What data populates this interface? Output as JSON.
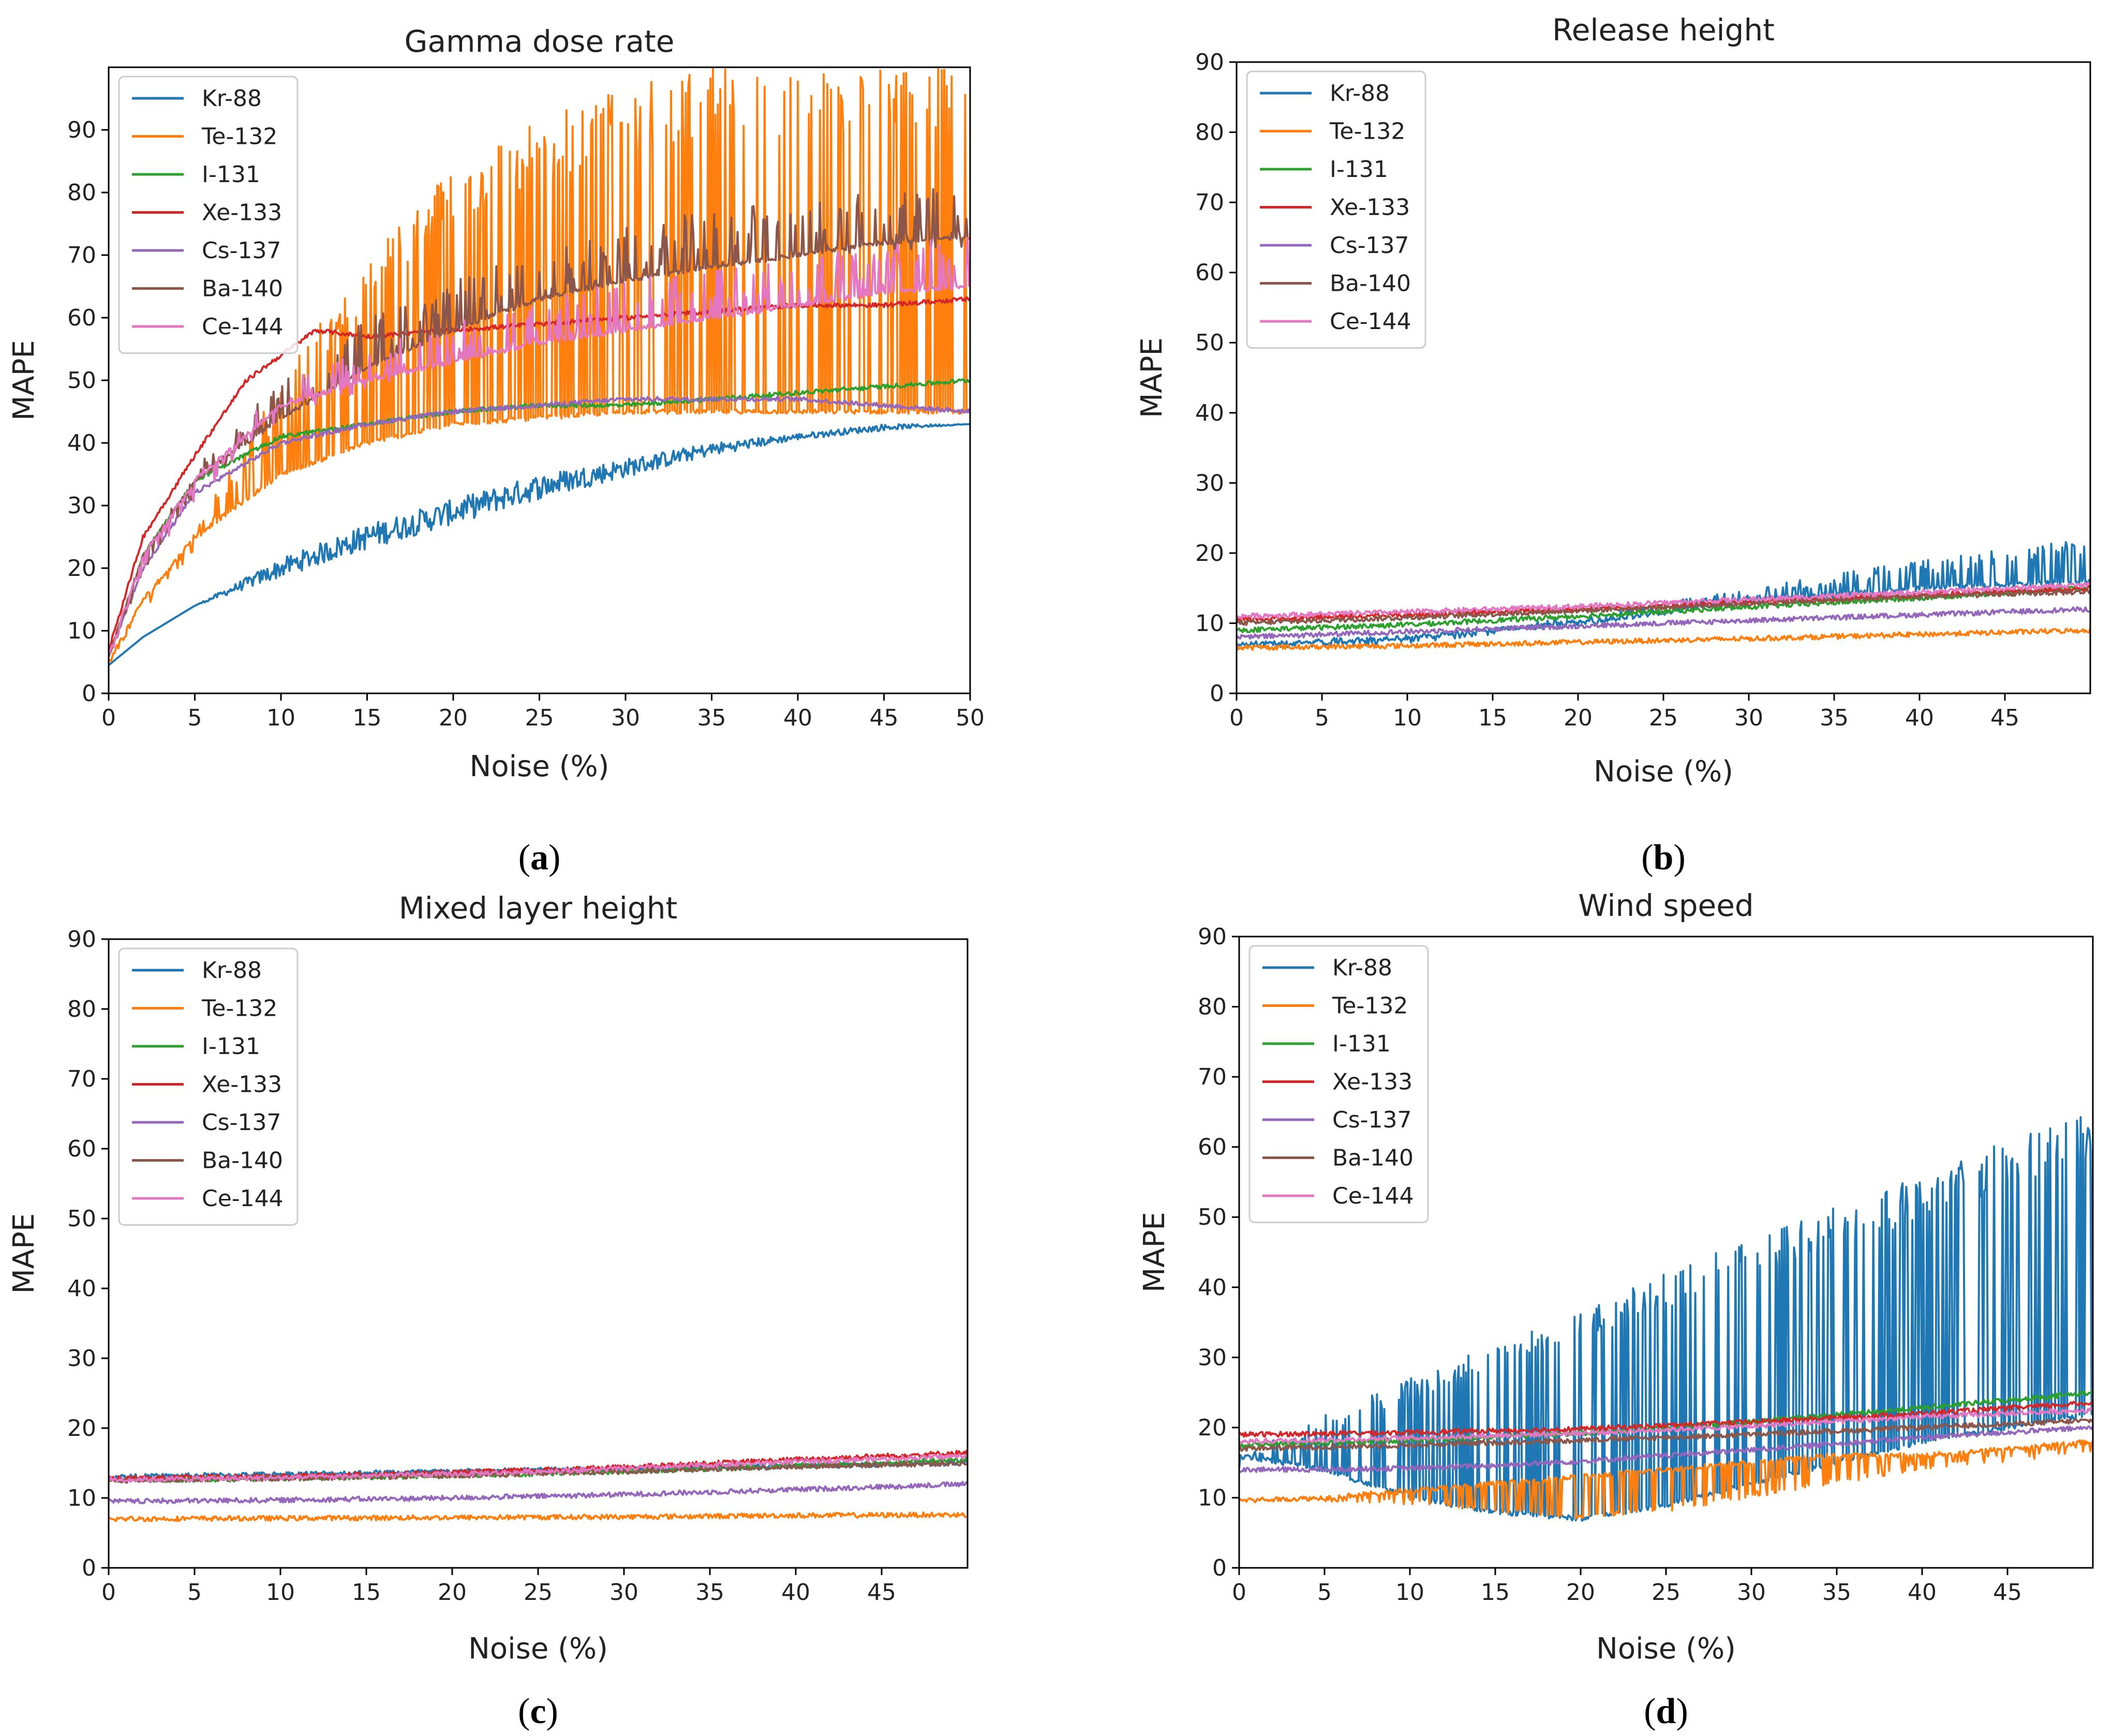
{
  "chart_data": [
    {
      "id": "a",
      "type": "line",
      "title": "Gamma dose rate",
      "caption_letter": "a",
      "xlabel": "Noise (%)",
      "ylabel": "MAPE",
      "xlim": [
        0,
        50
      ],
      "ylim": [
        0,
        100
      ],
      "xticks": [
        "0",
        "5",
        "10",
        "15",
        "20",
        "25",
        "30",
        "35",
        "40",
        "45",
        "50"
      ],
      "yticks": [
        "0",
        "10",
        "20",
        "30",
        "40",
        "50",
        "60",
        "70",
        "80",
        "90"
      ],
      "legend_position": "top-left",
      "series": [
        {
          "name": "Kr-88",
          "color": "#1f77b4",
          "x": [
            0,
            2,
            5,
            10,
            15,
            20,
            25,
            30,
            35,
            40,
            45,
            50
          ],
          "y": [
            4.5,
            9,
            14,
            20,
            25,
            29,
            33,
            36,
            39,
            41,
            42.5,
            43
          ],
          "noise_band": [
            0,
            0,
            0,
            1.5,
            2,
            2,
            2,
            1.5,
            1,
            0.5,
            0.5,
            0
          ]
        },
        {
          "name": "Te-132",
          "color": "#ff7f0e",
          "x": [
            0,
            2,
            5,
            10,
            15,
            20,
            25,
            30,
            35,
            40,
            45,
            50
          ],
          "y": [
            5,
            15,
            25,
            35,
            40,
            43,
            44,
            45,
            45,
            45,
            45,
            45
          ],
          "y_upper": [
            5,
            15,
            26,
            50,
            70,
            85,
            92,
            97,
            100,
            100,
            100,
            100
          ]
        },
        {
          "name": "I-131",
          "color": "#2ca02c",
          "x": [
            0,
            2,
            5,
            10,
            15,
            20,
            25,
            30,
            35,
            40,
            45,
            50
          ],
          "y": [
            6,
            22,
            34,
            41,
            43,
            45,
            46,
            46,
            47,
            48,
            49,
            50
          ]
        },
        {
          "name": "Xe-133",
          "color": "#d62728",
          "x": [
            0,
            2,
            5,
            8,
            12,
            15,
            20,
            25,
            30,
            35,
            40,
            45,
            50
          ],
          "y": [
            7,
            25,
            38,
            50,
            58,
            57,
            58,
            59,
            60,
            61,
            62,
            62,
            63
          ]
        },
        {
          "name": "Cs-137",
          "color": "#9467bd",
          "x": [
            0,
            2,
            5,
            10,
            15,
            20,
            25,
            30,
            35,
            40,
            45,
            50
          ],
          "y": [
            6,
            20,
            32,
            40,
            43,
            45,
            46,
            47,
            47,
            47,
            46,
            45
          ]
        },
        {
          "name": "Ba-140",
          "color": "#8c564b",
          "x": [
            0,
            2,
            5,
            10,
            15,
            20,
            25,
            30,
            35,
            40,
            45,
            50
          ],
          "y": [
            6,
            22,
            34,
            44,
            52,
            58,
            63,
            66,
            68,
            70,
            72,
            73
          ],
          "y_upper": [
            6,
            22,
            36,
            50,
            60,
            66,
            71,
            75,
            77,
            79,
            80,
            81
          ]
        },
        {
          "name": "Ce-144",
          "color": "#e377c2",
          "x": [
            0,
            2,
            5,
            10,
            15,
            20,
            25,
            30,
            35,
            40,
            45,
            50
          ],
          "y": [
            6,
            22,
            34,
            46,
            50,
            53,
            56,
            58,
            60,
            62,
            64,
            65
          ],
          "y_upper": [
            6,
            22,
            35,
            50,
            55,
            60,
            63,
            66,
            68,
            70,
            72,
            73
          ]
        }
      ]
    },
    {
      "id": "b",
      "type": "line",
      "title": "Release height",
      "caption_letter": "b",
      "xlabel": "Noise (%)",
      "ylabel": "MAPE",
      "xlim": [
        0,
        50
      ],
      "ylim": [
        0,
        90
      ],
      "xticks": [
        "0",
        "5",
        "10",
        "15",
        "20",
        "25",
        "30",
        "35",
        "40",
        "45"
      ],
      "yticks": [
        "0",
        "10",
        "20",
        "30",
        "40",
        "50",
        "60",
        "70",
        "80",
        "90"
      ],
      "legend_position": "top-left",
      "series": [
        {
          "name": "Kr-88",
          "color": "#1f77b4",
          "x": [
            0,
            10,
            20,
            30,
            40,
            50
          ],
          "y": [
            7,
            8,
            10,
            13,
            15,
            16
          ],
          "y_upper": [
            7,
            8,
            11,
            15,
            19,
            22.5
          ]
        },
        {
          "name": "Te-132",
          "color": "#ff7f0e",
          "x": [
            0,
            10,
            20,
            30,
            40,
            50
          ],
          "y": [
            6.5,
            6.8,
            7.3,
            7.8,
            8.4,
            9
          ]
        },
        {
          "name": "I-131",
          "color": "#2ca02c",
          "x": [
            0,
            10,
            20,
            30,
            40,
            50
          ],
          "y": [
            9,
            9.8,
            11,
            12.3,
            13.6,
            15
          ]
        },
        {
          "name": "Xe-133",
          "color": "#d62728",
          "x": [
            0,
            10,
            20,
            30,
            40,
            50
          ],
          "y": [
            10.5,
            11.2,
            12,
            13,
            14,
            15
          ]
        },
        {
          "name": "Cs-137",
          "color": "#9467bd",
          "x": [
            0,
            10,
            20,
            30,
            40,
            50
          ],
          "y": [
            8,
            8.8,
            9.6,
            10.4,
            11.2,
            12
          ]
        },
        {
          "name": "Ba-140",
          "color": "#8c564b",
          "x": [
            0,
            10,
            20,
            30,
            40,
            50
          ],
          "y": [
            10,
            10.8,
            11.8,
            12.8,
            13.8,
            14.5
          ]
        },
        {
          "name": "Ce-144",
          "color": "#e377c2",
          "x": [
            0,
            10,
            20,
            30,
            40,
            50
          ],
          "y": [
            11,
            11.6,
            12.4,
            13.4,
            14.4,
            15.5
          ]
        }
      ]
    },
    {
      "id": "c",
      "type": "line",
      "title": "Mixed layer height",
      "caption_letter": "c",
      "xlabel": "Noise (%)",
      "ylabel": "MAPE",
      "xlim": [
        0,
        50
      ],
      "ylim": [
        0,
        90
      ],
      "xticks": [
        "0",
        "5",
        "10",
        "15",
        "20",
        "25",
        "30",
        "35",
        "40",
        "45"
      ],
      "yticks": [
        "0",
        "10",
        "20",
        "30",
        "40",
        "50",
        "60",
        "70",
        "80",
        "90"
      ],
      "legend_position": "top-left",
      "series": [
        {
          "name": "Kr-88",
          "color": "#1f77b4",
          "x": [
            0,
            10,
            20,
            30,
            40,
            50
          ],
          "y": [
            13,
            13.4,
            13.8,
            14.2,
            14.6,
            15
          ]
        },
        {
          "name": "Te-132",
          "color": "#ff7f0e",
          "x": [
            0,
            10,
            20,
            30,
            40,
            50
          ],
          "y": [
            7,
            7.1,
            7.2,
            7.3,
            7.5,
            7.6
          ]
        },
        {
          "name": "I-131",
          "color": "#2ca02c",
          "x": [
            0,
            10,
            20,
            30,
            40,
            50
          ],
          "y": [
            12.5,
            12.8,
            13.2,
            13.8,
            14.6,
            15.5
          ]
        },
        {
          "name": "Xe-133",
          "color": "#d62728",
          "x": [
            0,
            10,
            20,
            30,
            40,
            50
          ],
          "y": [
            12.8,
            13.1,
            13.6,
            14.4,
            15.5,
            16.5
          ]
        },
        {
          "name": "Cs-137",
          "color": "#9467bd",
          "x": [
            0,
            10,
            20,
            30,
            40,
            50
          ],
          "y": [
            9.5,
            9.7,
            10,
            10.5,
            11.2,
            12
          ]
        },
        {
          "name": "Ba-140",
          "color": "#8c564b",
          "x": [
            0,
            10,
            20,
            30,
            40,
            50
          ],
          "y": [
            12.5,
            12.8,
            13.2,
            13.8,
            14.5,
            15
          ]
        },
        {
          "name": "Ce-144",
          "color": "#e377c2",
          "x": [
            0,
            10,
            20,
            30,
            40,
            50
          ],
          "y": [
            12.6,
            12.9,
            13.4,
            14.2,
            15.2,
            16
          ]
        }
      ]
    },
    {
      "id": "d",
      "type": "line",
      "title": "Wind speed",
      "caption_letter": "d",
      "xlabel": "Noise (%)",
      "ylabel": "MAPE",
      "xlim": [
        0,
        50
      ],
      "ylim": [
        0,
        90
      ],
      "xticks": [
        "0",
        "5",
        "10",
        "15",
        "20",
        "25",
        "30",
        "35",
        "40",
        "45"
      ],
      "yticks": [
        "0",
        "10",
        "20",
        "30",
        "40",
        "50",
        "60",
        "70",
        "80",
        "90"
      ],
      "legend_position": "top-left",
      "series": [
        {
          "name": "Kr-88",
          "color": "#1f77b4",
          "x": [
            0,
            5,
            10,
            15,
            20,
            25,
            30,
            35,
            40,
            45,
            50
          ],
          "y": [
            16,
            14,
            10,
            8,
            7,
            9,
            12,
            15,
            18,
            20,
            22
          ],
          "y_upper": [
            16,
            22,
            27,
            32,
            37,
            42,
            47,
            52,
            56,
            61,
            65
          ]
        },
        {
          "name": "Te-132",
          "color": "#ff7f0e",
          "x": [
            0,
            5,
            10,
            15,
            20,
            25,
            30,
            35,
            40,
            45,
            50
          ],
          "y": [
            9.5,
            10,
            11,
            12,
            13,
            14,
            15,
            16,
            16,
            17,
            18
          ],
          "y_lower": [
            9.5,
            9.5,
            9,
            8,
            7,
            8,
            10,
            12,
            14,
            15,
            16.5
          ]
        },
        {
          "name": "I-131",
          "color": "#2ca02c",
          "x": [
            0,
            10,
            20,
            30,
            40,
            50
          ],
          "y": [
            17.5,
            18.2,
            19.2,
            20.8,
            22.8,
            25
          ]
        },
        {
          "name": "Xe-133",
          "color": "#d62728",
          "x": [
            0,
            10,
            20,
            30,
            40,
            50
          ],
          "y": [
            19,
            19.3,
            19.8,
            20.8,
            22,
            23.5
          ]
        },
        {
          "name": "Cs-137",
          "color": "#9467bd",
          "x": [
            0,
            5,
            10,
            15,
            20,
            30,
            40,
            50
          ],
          "y": [
            14,
            14,
            14.2,
            14.6,
            15.2,
            16.8,
            18.6,
            20
          ]
        },
        {
          "name": "Ba-140",
          "color": "#8c564b",
          "x": [
            0,
            10,
            20,
            30,
            40,
            50
          ],
          "y": [
            17,
            17.5,
            18.2,
            19,
            20,
            21
          ]
        },
        {
          "name": "Ce-144",
          "color": "#e377c2",
          "x": [
            0,
            10,
            20,
            30,
            40,
            50
          ],
          "y": [
            18,
            18.5,
            19.2,
            20.2,
            21.5,
            22.5
          ]
        }
      ]
    }
  ]
}
